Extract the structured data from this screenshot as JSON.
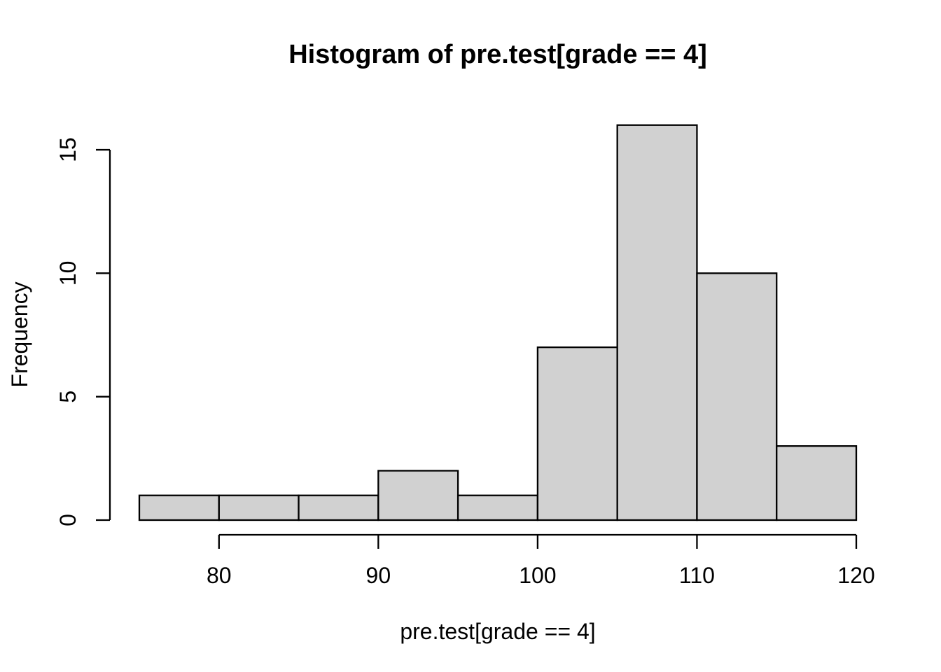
{
  "chart_data": {
    "type": "bar",
    "subtype": "histogram",
    "title": "Histogram of pre.test[grade == 4]",
    "xlabel": "pre.test[grade == 4]",
    "ylabel": "Frequency",
    "bin_edges": [
      75,
      80,
      85,
      90,
      95,
      100,
      105,
      110,
      115,
      120
    ],
    "counts": [
      1,
      1,
      1,
      2,
      1,
      7,
      16,
      10,
      3
    ],
    "x_ticks": [
      80,
      90,
      100,
      110,
      120
    ],
    "y_ticks": [
      0,
      5,
      10,
      15
    ],
    "xlim": [
      75,
      120
    ],
    "ylim": [
      0,
      16
    ],
    "grid": false,
    "legend": null,
    "bar_fill": "#d1d1d1",
    "bar_stroke": "#000000",
    "axis_color": "#000000",
    "background": "#ffffff"
  }
}
